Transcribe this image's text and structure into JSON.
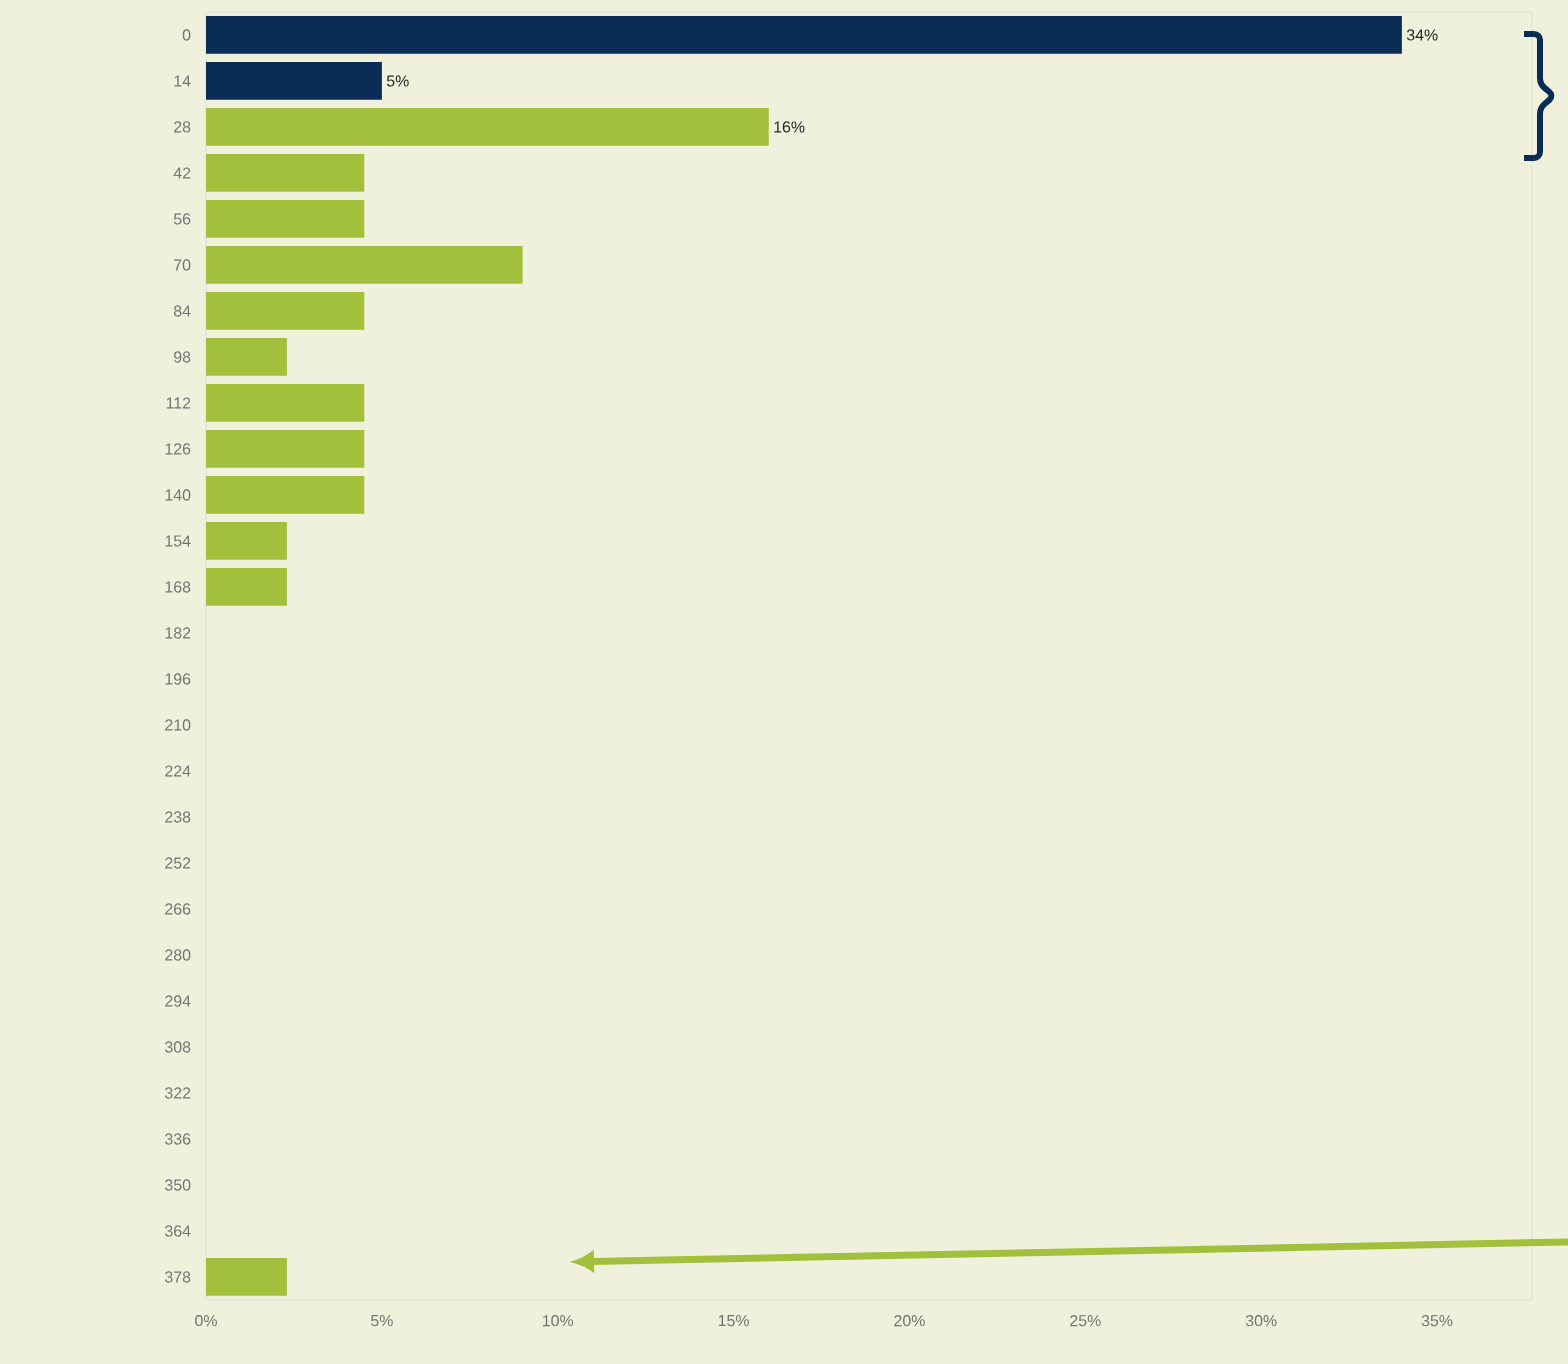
{
  "chart_data": {
    "type": "bar",
    "orientation": "horizontal",
    "categories": [
      "0",
      "14",
      "28",
      "42",
      "56",
      "70",
      "84",
      "98",
      "112",
      "126",
      "140",
      "154",
      "168",
      "182",
      "196",
      "210",
      "224",
      "238",
      "252",
      "266",
      "280",
      "294",
      "308",
      "322",
      "336",
      "350",
      "364",
      "378"
    ],
    "values": [
      34,
      5,
      16,
      4.5,
      4.5,
      9,
      4.5,
      2.3,
      4.5,
      4.5,
      4.5,
      2.3,
      2.3,
      0,
      0,
      0,
      0,
      0,
      0,
      0,
      0,
      0,
      0,
      0,
      0,
      0,
      0,
      2.3
    ],
    "colors": [
      "#0b2d55",
      "#0b2d55",
      "#a3c03c",
      "#a3c03c",
      "#a3c03c",
      "#a3c03c",
      "#a3c03c",
      "#a3c03c",
      "#a3c03c",
      "#a3c03c",
      "#a3c03c",
      "#a3c03c",
      "#a3c03c",
      "#a3c03c",
      "#a3c03c",
      "#a3c03c",
      "#a3c03c",
      "#a3c03c",
      "#a3c03c",
      "#a3c03c",
      "#a3c03c",
      "#a3c03c",
      "#a3c03c",
      "#a3c03c",
      "#a3c03c",
      "#a3c03c",
      "#a3c03c",
      "#a3c03c"
    ],
    "value_labels": [
      "34%",
      "5%",
      "16%",
      null,
      null,
      null,
      null,
      null,
      null,
      null,
      null,
      null,
      null,
      null,
      null,
      null,
      null,
      null,
      null,
      null,
      null,
      null,
      null,
      null,
      null,
      null,
      null,
      null
    ],
    "xlim": [
      0,
      37.7
    ],
    "xticks": [
      {
        "value": 0,
        "label": "0%"
      },
      {
        "value": 5,
        "label": "5%"
      },
      {
        "value": 10,
        "label": "10%"
      },
      {
        "value": 15,
        "label": "15%"
      },
      {
        "value": 20,
        "label": "20%"
      },
      {
        "value": 25,
        "label": "25%"
      },
      {
        "value": 30,
        "label": "30%"
      },
      {
        "value": 35,
        "label": "35%"
      }
    ],
    "grid": false
  }
}
